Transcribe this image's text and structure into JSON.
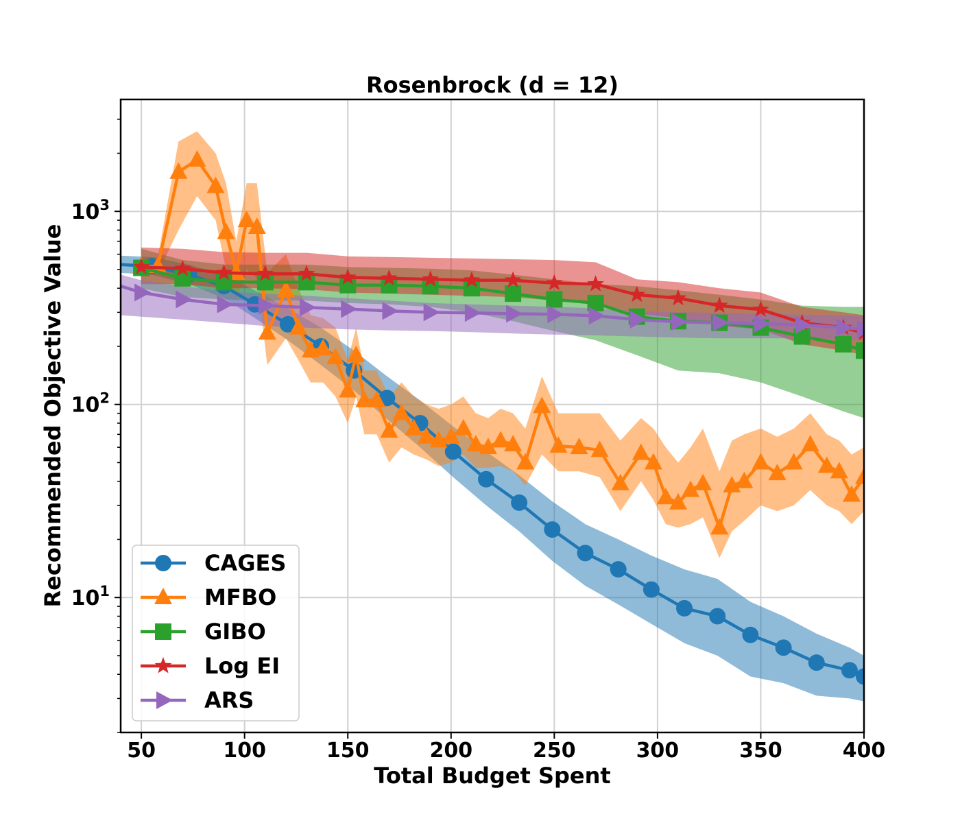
{
  "chart_data": {
    "type": "line",
    "title": "Rosenbrock (d = 12)",
    "xlabel": "Total Budget Spent",
    "ylabel": "Recommended Objective Value",
    "xlim": [
      40,
      400
    ],
    "ylim": [
      2,
      3800
    ],
    "yscale": "log",
    "grid": true,
    "legend_position": "lower-left",
    "x_ticks": [
      50,
      100,
      150,
      200,
      250,
      300,
      350,
      400
    ],
    "y_ticks": [
      {
        "value": 10,
        "base": "10",
        "exp": "1"
      },
      {
        "value": 100,
        "base": "10",
        "exp": "2"
      },
      {
        "value": 1000,
        "base": "10",
        "exp": "3"
      }
    ],
    "series": [
      {
        "name": "CAGES",
        "color": "#1f77b4",
        "marker": "circle",
        "x": [
          40,
          55,
          73,
          90,
          105,
          121,
          137,
          153,
          169,
          185,
          201,
          217,
          233,
          249,
          265,
          281,
          297,
          313,
          329,
          345,
          361,
          377,
          393,
          400
        ],
        "y": [
          530,
          520,
          470,
          410,
          330,
          260,
          200,
          150,
          108,
          80,
          57,
          41,
          31,
          22.5,
          17,
          14,
          11,
          8.8,
          8,
          6.4,
          5.5,
          4.6,
          4.2,
          3.9
        ],
        "lower": [
          480,
          470,
          420,
          355,
          280,
          215,
          160,
          118,
          84,
          60,
          42,
          30,
          22,
          15.5,
          11.5,
          9.2,
          7.3,
          5.8,
          5,
          3.9,
          3.6,
          3.1,
          3.0,
          2.9
        ],
        "upper": [
          590,
          580,
          530,
          470,
          390,
          315,
          250,
          190,
          140,
          105,
          77,
          57,
          43,
          31.5,
          24,
          20,
          16.5,
          14,
          12.5,
          9.5,
          8,
          6.5,
          5.5,
          5.0
        ]
      },
      {
        "name": "MFBO",
        "color": "#ff7f0e",
        "marker": "triangle",
        "x": [
          50,
          58,
          68,
          77,
          86,
          91,
          96,
          101,
          106,
          111,
          120,
          126,
          132,
          138,
          144,
          150,
          154,
          158,
          164,
          170,
          176,
          182,
          188,
          194,
          200,
          206,
          212,
          218,
          224,
          230,
          236,
          244,
          252,
          262,
          272,
          282,
          292,
          298,
          304,
          310,
          316,
          322,
          330,
          336,
          342,
          350,
          358,
          366,
          374,
          382,
          388,
          394,
          400
        ],
        "y": [
          520,
          520,
          1600,
          1850,
          1350,
          780,
          480,
          900,
          830,
          235,
          390,
          250,
          190,
          195,
          175,
          118,
          180,
          105,
          105,
          73,
          90,
          75,
          68,
          65,
          68,
          75,
          62,
          60,
          65,
          62,
          50,
          98,
          61,
          60,
          58,
          39,
          56,
          50,
          33,
          31,
          36,
          39,
          23,
          38,
          40,
          50,
          44,
          50,
          62,
          48,
          45,
          34,
          42
        ],
        "lower": [
          480,
          480,
          800,
          1200,
          900,
          500,
          350,
          500,
          450,
          160,
          220,
          170,
          130,
          130,
          110,
          80,
          110,
          70,
          70,
          50,
          60,
          55,
          52,
          48,
          50,
          55,
          47,
          47,
          48,
          45,
          38,
          55,
          45,
          45,
          42,
          28,
          40,
          32,
          24,
          23,
          24,
          26,
          16,
          22,
          25,
          30,
          28,
          30,
          36,
          30,
          28,
          24,
          28
        ],
        "upper": [
          560,
          580,
          2300,
          2600,
          2000,
          1400,
          700,
          1400,
          1400,
          480,
          600,
          400,
          290,
          280,
          250,
          170,
          250,
          150,
          150,
          110,
          130,
          110,
          100,
          95,
          100,
          110,
          90,
          85,
          95,
          90,
          75,
          140,
          90,
          90,
          90,
          65,
          85,
          75,
          60,
          50,
          60,
          75,
          45,
          65,
          70,
          75,
          68,
          75,
          90,
          70,
          65,
          55,
          60
        ]
      },
      {
        "name": "GIBO",
        "color": "#2ca02c",
        "marker": "square",
        "x": [
          50,
          70,
          90,
          110,
          130,
          150,
          170,
          190,
          210,
          230,
          250,
          270,
          290,
          310,
          330,
          350,
          370,
          390,
          400
        ],
        "y": [
          510,
          450,
          430,
          430,
          430,
          415,
          415,
          410,
          400,
          375,
          350,
          335,
          285,
          270,
          265,
          250,
          225,
          205,
          190
        ],
        "lower": [
          400,
          360,
          350,
          345,
          345,
          335,
          330,
          320,
          300,
          270,
          240,
          215,
          180,
          150,
          145,
          130,
          110,
          92,
          85
        ],
        "upper": [
          640,
          560,
          530,
          530,
          530,
          515,
          510,
          505,
          495,
          470,
          445,
          420,
          410,
          390,
          370,
          350,
          325,
          320,
          320
        ]
      },
      {
        "name": "Log EI",
        "color": "#d62728",
        "marker": "star",
        "x": [
          50,
          70,
          90,
          110,
          130,
          150,
          170,
          190,
          210,
          230,
          250,
          270,
          290,
          310,
          330,
          350,
          370,
          390,
          400
        ],
        "y": [
          515,
          505,
          480,
          475,
          475,
          455,
          450,
          445,
          440,
          440,
          425,
          420,
          370,
          355,
          325,
          310,
          265,
          250,
          235
        ],
        "lower": [
          420,
          420,
          400,
          400,
          395,
          380,
          375,
          370,
          365,
          360,
          345,
          335,
          295,
          280,
          255,
          245,
          205,
          190,
          180
        ],
        "upper": [
          650,
          640,
          615,
          610,
          610,
          585,
          580,
          575,
          570,
          565,
          560,
          545,
          445,
          430,
          400,
          380,
          320,
          300,
          290
        ]
      },
      {
        "name": "ARS",
        "color": "#9467bd",
        "marker": "tri-right",
        "x": [
          40,
          50,
          70,
          90,
          110,
          130,
          150,
          170,
          190,
          210,
          230,
          250,
          270,
          290,
          310,
          330,
          350,
          370,
          390,
          400
        ],
        "y": [
          410,
          380,
          350,
          330,
          325,
          318,
          312,
          305,
          300,
          298,
          295,
          293,
          288,
          275,
          268,
          265,
          262,
          258,
          250,
          245
        ],
        "lower": [
          290,
          285,
          275,
          265,
          255,
          250,
          245,
          242,
          240,
          237,
          233,
          230,
          228,
          225,
          222,
          220,
          220,
          220,
          218,
          215
        ],
        "upper": [
          470,
          440,
          410,
          385,
          375,
          365,
          355,
          345,
          335,
          330,
          325,
          320,
          315,
          305,
          300,
          298,
          295,
          292,
          288,
          285
        ]
      }
    ]
  }
}
